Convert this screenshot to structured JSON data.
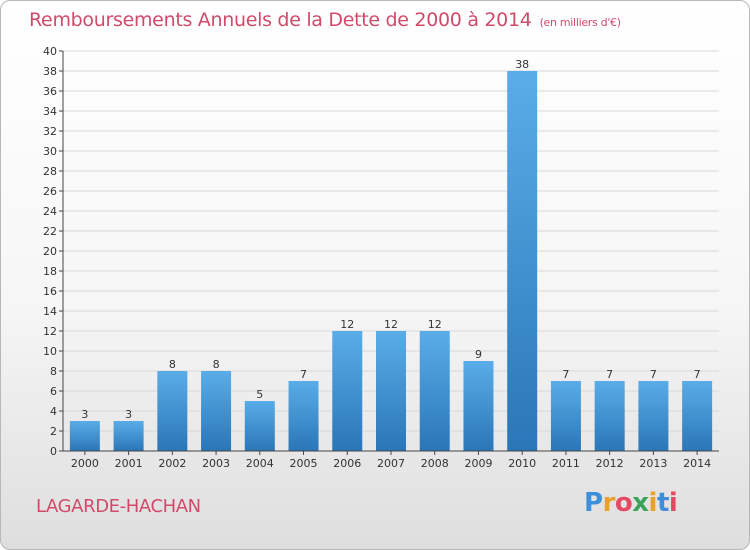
{
  "header": {
    "title": "Remboursements Annuels de la Dette de 2000 à 2014",
    "unit": "(en milliers d'€)"
  },
  "footer": {
    "commune": "LAGARDE-HACHAN",
    "logo_letters": [
      "P",
      "r",
      "o",
      "x",
      "i",
      "t",
      "i"
    ],
    "logo_colors": [
      "#3d8fd9",
      "#e8a12a",
      "#e44b62",
      "#3aa55a",
      "#e8a12a",
      "#3d8fd9",
      "#e44b62"
    ]
  },
  "colors": {
    "title": "#d24a6a",
    "bar_top": "#5aade8",
    "bar_bottom": "#2a76b8",
    "grid": "#d8d8d8",
    "axis": "#444444"
  },
  "chart_data": {
    "type": "bar",
    "categories": [
      "2000",
      "2001",
      "2002",
      "2003",
      "2004",
      "2005",
      "2006",
      "2007",
      "2008",
      "2009",
      "2010",
      "2011",
      "2012",
      "2013",
      "2014"
    ],
    "values": [
      3,
      3,
      8,
      8,
      5,
      7,
      12,
      12,
      12,
      9,
      38,
      7,
      7,
      7,
      7
    ],
    "ylim": [
      0,
      40
    ],
    "yticks": [
      0,
      2,
      4,
      6,
      8,
      10,
      12,
      14,
      16,
      18,
      20,
      22,
      24,
      26,
      28,
      30,
      32,
      34,
      36,
      38,
      40
    ],
    "grid": true,
    "data_labels": true
  }
}
